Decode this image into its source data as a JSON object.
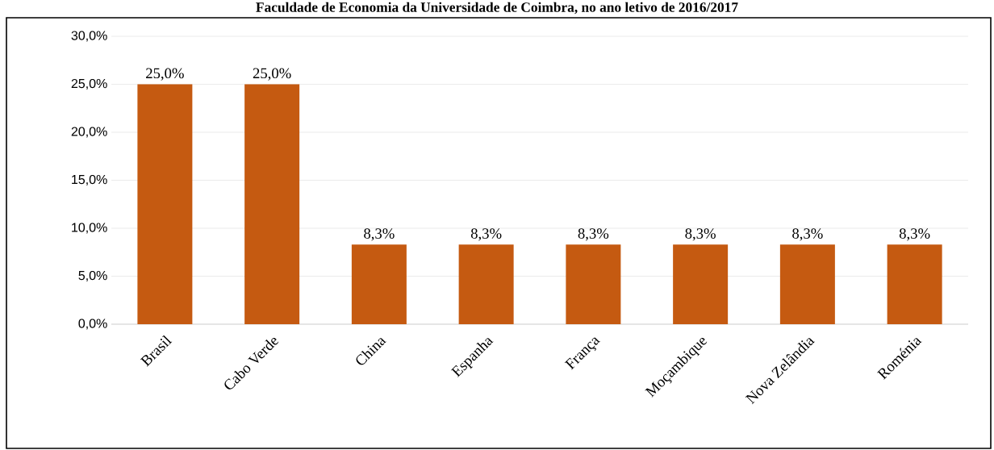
{
  "chart_data": {
    "type": "bar",
    "title": "Faculdade de Economia da Universidade de Coimbra, no ano letivo de 2016/2017",
    "categories": [
      "Brasil",
      "Cabo Verde",
      "China",
      "Espanha",
      "França",
      "Moçambique",
      "Nova Zelândia",
      "Roménia"
    ],
    "values": [
      25.0,
      25.0,
      8.3,
      8.3,
      8.3,
      8.3,
      8.3,
      8.3
    ],
    "value_labels": [
      "25,0%",
      "25,0%",
      "8,3%",
      "8,3%",
      "8,3%",
      "8,3%",
      "8,3%",
      "8,3%"
    ],
    "color": "#c55a11",
    "ylim": [
      0,
      30
    ],
    "yticks": [
      {
        "value": 0,
        "label": "0,0%"
      },
      {
        "value": 5,
        "label": "5,0%"
      },
      {
        "value": 10,
        "label": "10,0%"
      },
      {
        "value": 15,
        "label": "15,0%"
      },
      {
        "value": 20,
        "label": "20,0%"
      },
      {
        "value": 25,
        "label": "25,0%"
      },
      {
        "value": 30,
        "label": "30,0%"
      }
    ],
    "grid": "y"
  }
}
